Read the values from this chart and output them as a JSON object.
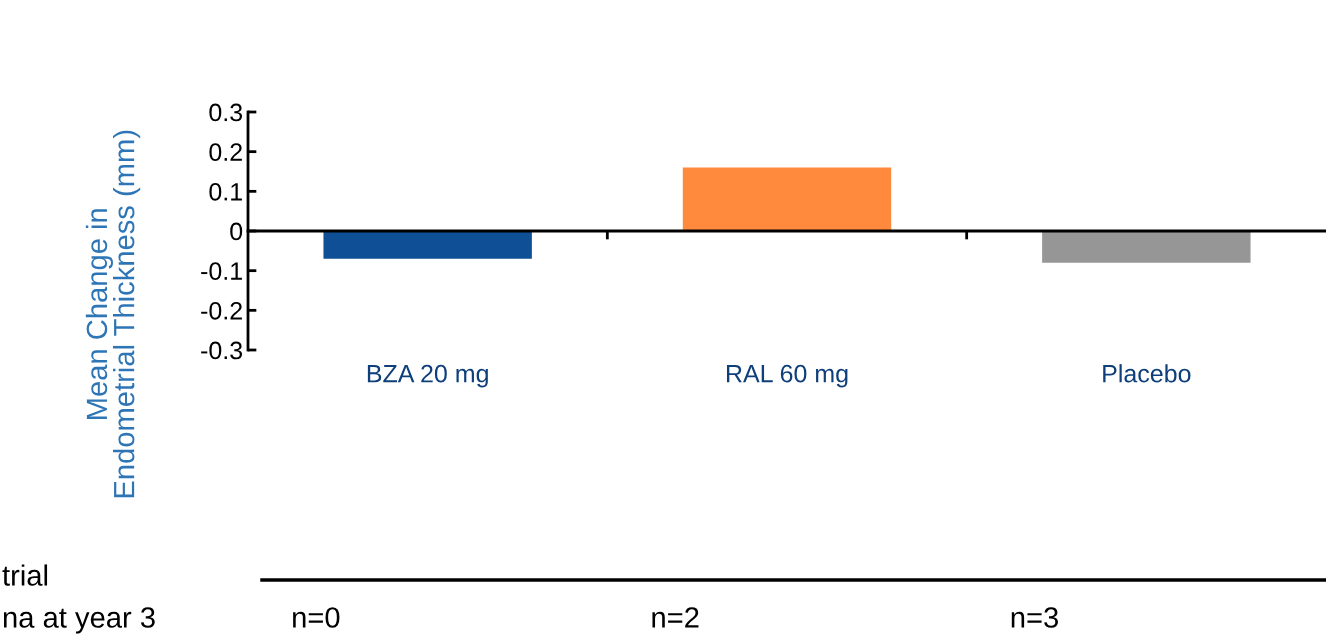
{
  "chart_data": {
    "type": "bar",
    "ylabel": "Mean Change in\nEndometrial Thickness (mm)",
    "categories": [
      "BZA 20 mg",
      "RAL 60 mg",
      "Placebo"
    ],
    "values": [
      -0.07,
      0.16,
      -0.08
    ],
    "colors": [
      "#0e4f96",
      "#ff8a3d",
      "#969696"
    ],
    "ylim": [
      -0.3,
      0.3
    ],
    "yticks": [
      -0.3,
      -0.2,
      -0.1,
      0,
      0.1,
      0.2,
      0.3
    ],
    "legend": false,
    "annotations": [
      "trial",
      "na at year 3",
      "n=0",
      "n=2",
      "n=3"
    ]
  }
}
